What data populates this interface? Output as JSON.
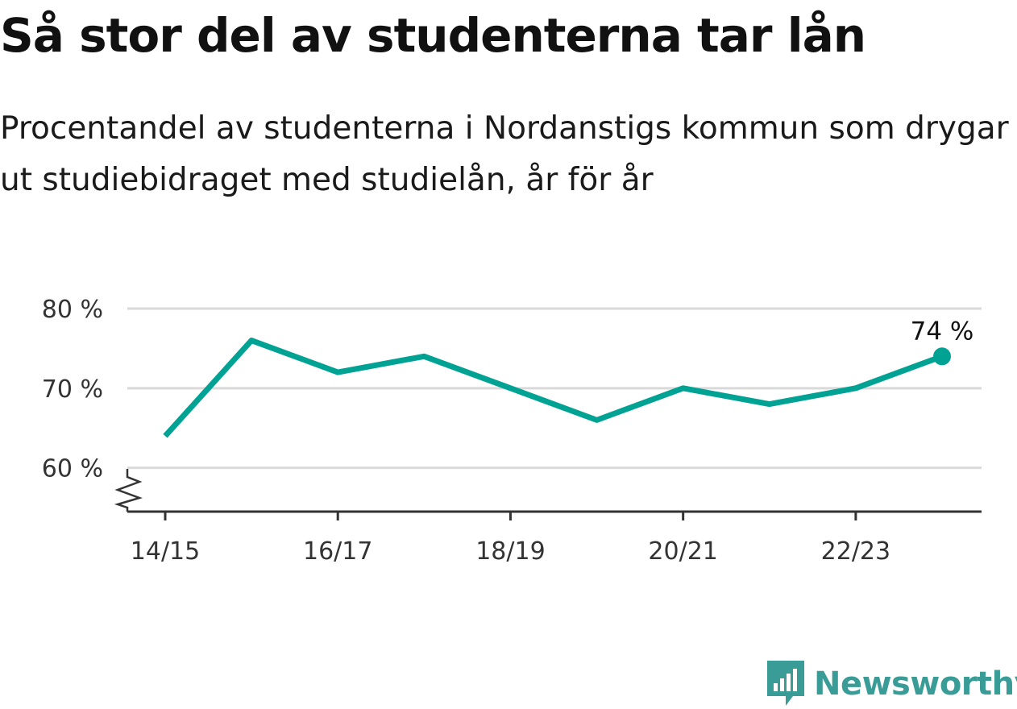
{
  "title": "Så stor del av studenterna tar lån",
  "subtitle": "Procentandel av studenterna i Nordanstigs kommun som drygar ut studiebidraget med studielån, år för år",
  "brand": {
    "name": "Newsworthy",
    "icon": "newsworthy-logo-icon",
    "color": "#3a9c96"
  },
  "chart_data": {
    "type": "line",
    "x": [
      "14/15",
      "15/16",
      "16/17",
      "17/18",
      "18/19",
      "19/20",
      "20/21",
      "21/22",
      "22/23",
      "23/24"
    ],
    "values": [
      64,
      76,
      72,
      74,
      70,
      66,
      70,
      68,
      70,
      74
    ],
    "x_tick_labels": [
      "14/15",
      "16/17",
      "18/19",
      "20/21",
      "22/23"
    ],
    "y_ticks": [
      60,
      70,
      80
    ],
    "y_tick_labels": [
      "60 %",
      "70 %",
      "80 %"
    ],
    "ylim": [
      54.5,
      80
    ],
    "axis_break": true,
    "grid": true,
    "last_value_label": "74 %",
    "line_color": "#00a294",
    "grid_color": "#d9d9d9",
    "axis_color": "#333333"
  }
}
